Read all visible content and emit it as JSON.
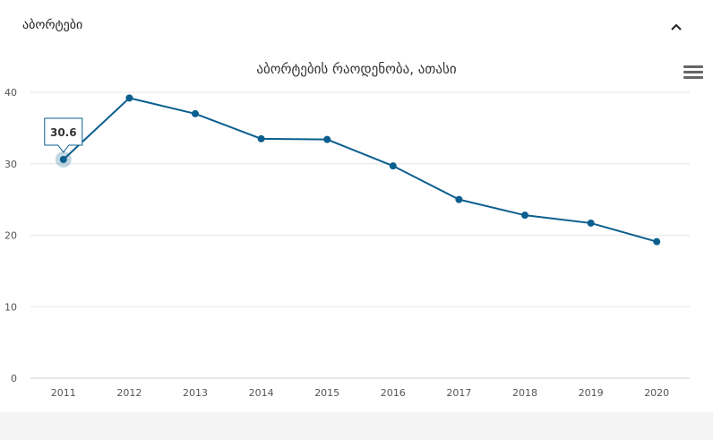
{
  "panel": {
    "title": "აბორტები",
    "collapse_icon": "chevron-up-icon"
  },
  "chart": {
    "menu_icon": "hamburger-menu-icon",
    "line_color": "#0b5f8f",
    "tooltip_text": "30.6"
  },
  "chart_data": {
    "type": "line",
    "title": "აბორტების რაოდენობა, ათასი",
    "xlabel": "",
    "ylabel": "",
    "categories": [
      "2011",
      "2012",
      "2013",
      "2014",
      "2015",
      "2016",
      "2017",
      "2018",
      "2019",
      "2020"
    ],
    "series": [
      {
        "values": [
          30.6,
          39.2,
          37.0,
          33.5,
          33.4,
          29.7,
          25.0,
          22.8,
          21.7,
          19.1
        ]
      }
    ],
    "ylim": [
      0,
      40
    ],
    "yticks": [
      0,
      10,
      20,
      30,
      40
    ],
    "grid": true,
    "highlighted_point": "2011"
  }
}
